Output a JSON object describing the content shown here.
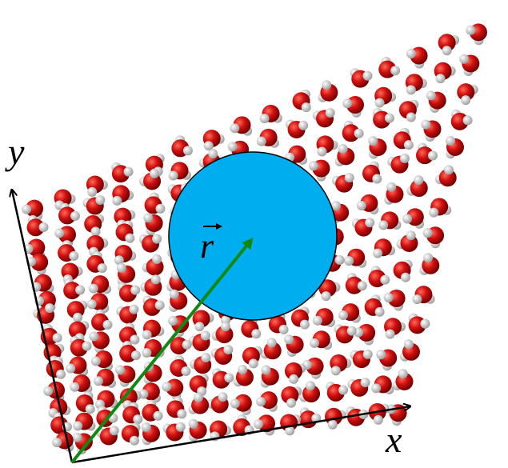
{
  "axes": {
    "x_label": "x",
    "y_label": "y"
  },
  "vector": {
    "label": "r"
  }
}
